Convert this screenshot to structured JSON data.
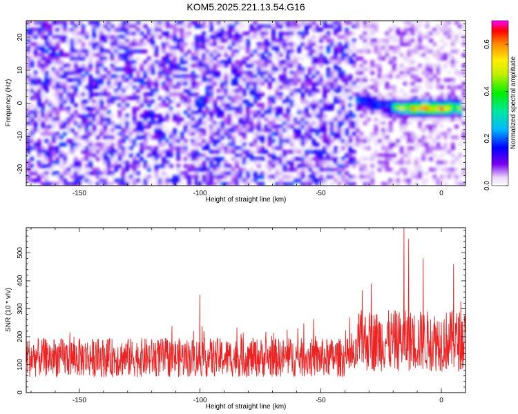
{
  "title": "KOM5.2025.221.13.54.G16",
  "colors": {
    "snr_line": "#ee2222",
    "axis": "#000000",
    "background": "#ffffff"
  },
  "chart_data": [
    {
      "type": "heatmap",
      "name": "spectrogram",
      "xlabel": "Height of straight line (km)",
      "ylabel": "Frequency (Hz)",
      "xlim": [
        -172,
        10
      ],
      "ylim": [
        -25,
        25
      ],
      "xticks": [
        -150,
        -100,
        -50,
        0
      ],
      "yticks": [
        -20,
        -10,
        0,
        10,
        20
      ],
      "colorbar": {
        "label": "Normalized spectral amplitude",
        "range": [
          0,
          0.7
        ],
        "ticks": [
          0.0,
          0.2,
          0.4,
          0.6
        ],
        "tick_labels": [
          "0.0",
          "0.2",
          "0.4",
          "0.6"
        ],
        "colormap": "rainbow (white at 0)"
      },
      "features": [
        {
          "description": "background noise blobs",
          "x_range": [
            -172,
            10
          ],
          "freq_range": [
            -25,
            25
          ],
          "amplitude": 0.08
        },
        {
          "description": "strong ridge near 0 Hz",
          "x_range": [
            -20,
            8
          ],
          "freq_center": -1.5,
          "peak_amplitude": 0.68
        }
      ]
    },
    {
      "type": "line",
      "name": "snr",
      "xlabel": "Height of straight line (km)",
      "ylabel": "SNR (10 * v/v)",
      "xlim": [
        -172,
        10
      ],
      "ylim": [
        0,
        590
      ],
      "xticks": [
        -150,
        -100,
        -50,
        0
      ],
      "yticks": [
        0,
        100,
        200,
        300,
        400,
        500
      ],
      "series": [
        {
          "name": "SNR",
          "samples": 1400,
          "baseline_segments": [
            {
              "x": [
                -172,
                -35
              ],
              "mean": 125,
              "spread": 70
            },
            {
              "x": [
                -35,
                10
              ],
              "mean": 185,
              "spread": 110
            }
          ],
          "spikes": [
            {
              "x": -15.5,
              "y": 590
            },
            {
              "x": -13.5,
              "y": 550
            },
            {
              "x": -7.5,
              "y": 480
            },
            {
              "x": -29,
              "y": 390
            },
            {
              "x": 5,
              "y": 460
            },
            {
              "x": -100,
              "y": 350
            }
          ]
        }
      ]
    }
  ]
}
